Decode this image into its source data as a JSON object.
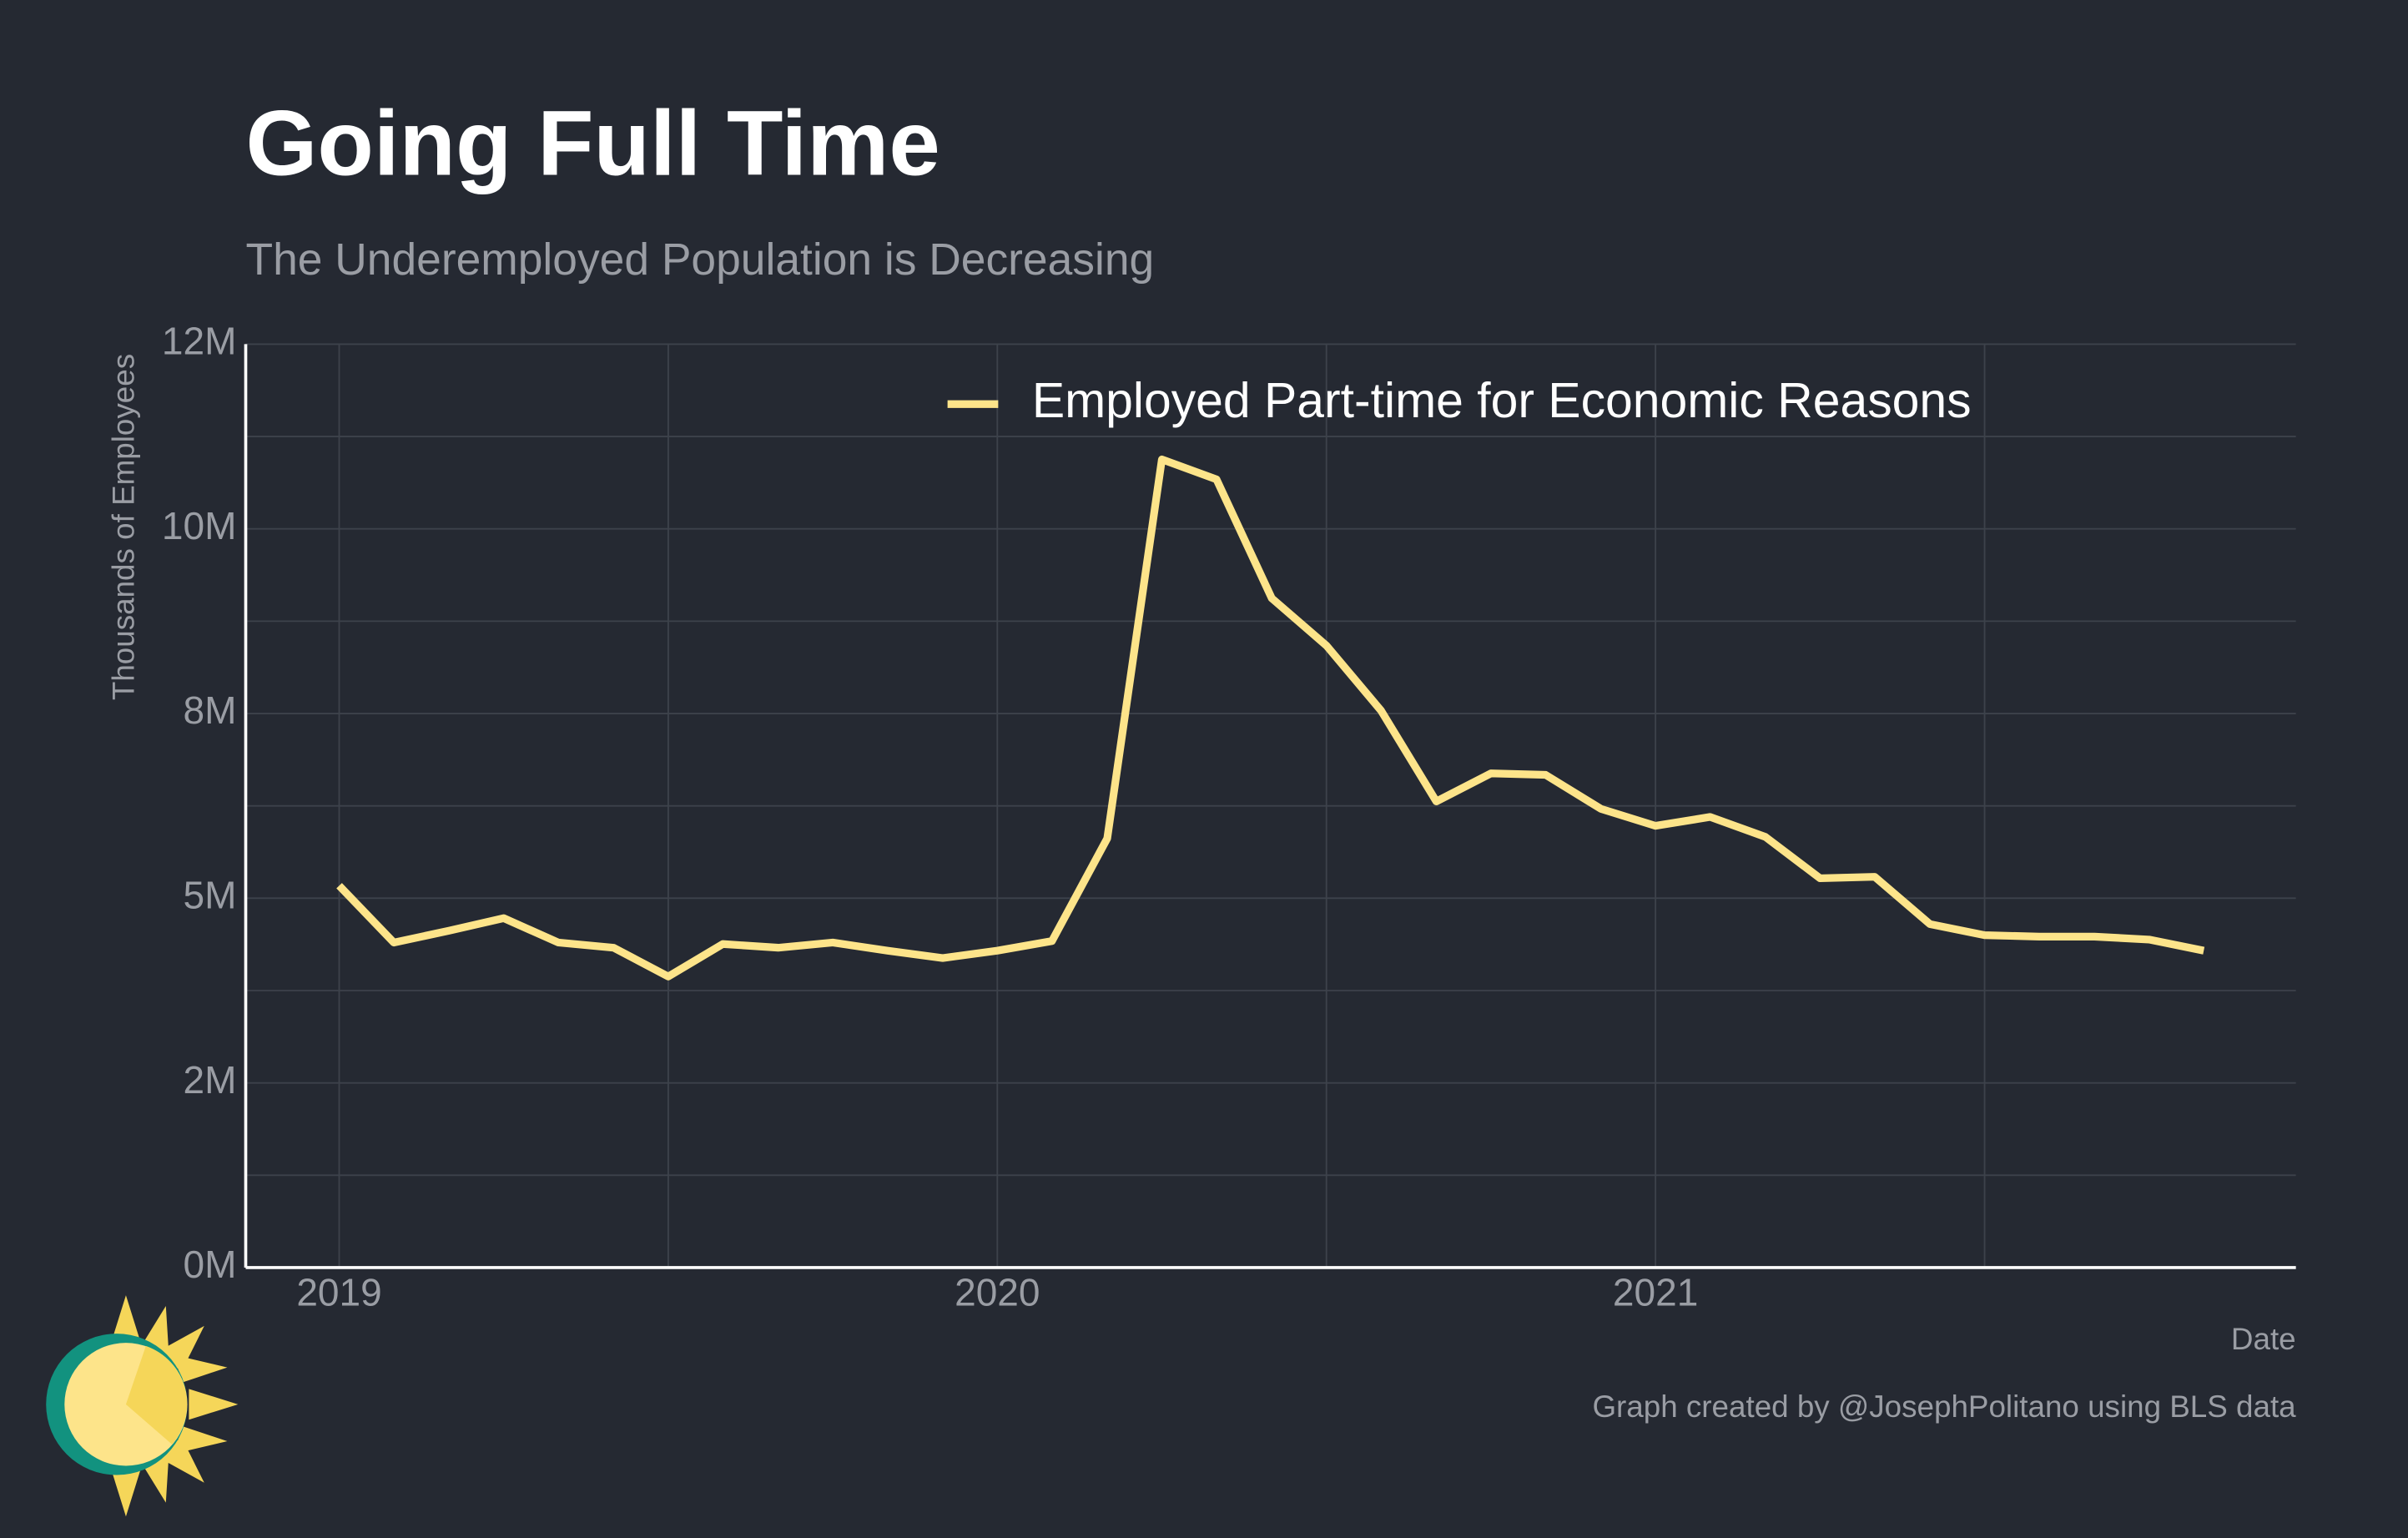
{
  "chart_data": {
    "type": "line",
    "title": "Going Full Time",
    "subtitle": "The Underemployed Population is Decreasing",
    "y_label": "Thousands of Employees",
    "x_label": "Date",
    "credit": "Graph created by @JosephPolitano using BLS data",
    "x": [
      2019,
      2019.083,
      2019.167,
      2019.25,
      2019.333,
      2019.417,
      2019.5,
      2019.583,
      2019.667,
      2019.75,
      2019.833,
      2019.917,
      2020,
      2020.083,
      2020.167,
      2020.25,
      2020.333,
      2020.417,
      2020.5,
      2020.583,
      2020.667,
      2020.75,
      2020.833,
      2020.917,
      2021,
      2021.083,
      2021.167,
      2021.25,
      2021.333,
      2021.417,
      2021.5,
      2021.583,
      2021.667,
      2021.75,
      2021.833
    ],
    "series": [
      {
        "name": "Employed Part-time for Economic Reasons",
        "color": "#fde48a",
        "values": [
          5170,
          4400,
          4560,
          4730,
          4400,
          4330,
          3940,
          4380,
          4330,
          4400,
          4290,
          4190,
          4290,
          4420,
          5810,
          10940,
          10670,
          9060,
          8420,
          7540,
          6310,
          6690,
          6670,
          6210,
          5980,
          6100,
          5830,
          5270,
          5290,
          4650,
          4500,
          4480,
          4480,
          4440,
          4290
        ]
      }
    ],
    "xlim": [
      2018.858,
      2021.973
    ],
    "xticks": [
      2019,
      2020,
      2021
    ],
    "minor_xticks": [
      2019.5,
      2020.5,
      2021.5
    ],
    "ylim": [
      0,
      12500
    ],
    "yticks": [
      {
        "value": 0,
        "label": "0M"
      },
      {
        "value": 2500,
        "label": "2M"
      },
      {
        "value": 5000,
        "label": "5M"
      },
      {
        "value": 7500,
        "label": "8M"
      },
      {
        "value": 10000,
        "label": "10M"
      },
      {
        "value": 12500,
        "label": "12M"
      }
    ],
    "minor_yticks": [
      1250,
      3750,
      6250,
      8750,
      11250
    ],
    "grid": true,
    "legend": "top"
  }
}
